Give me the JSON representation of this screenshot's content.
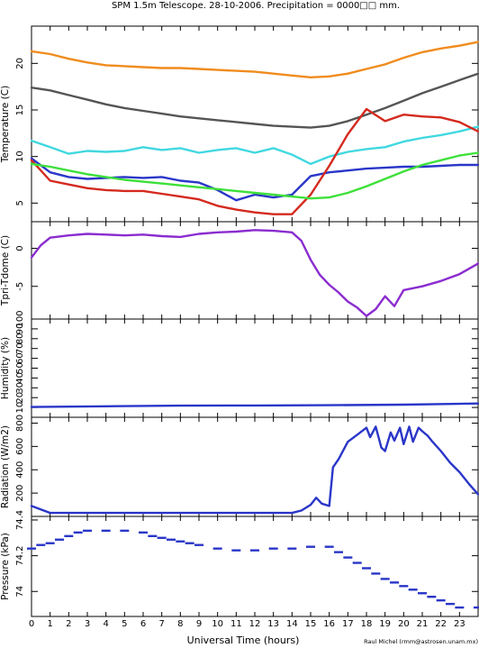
{
  "title": "SPM 1.5m Telescope. 28-10-2006. Precipitation = 0000□□ mm.",
  "credit": "Raul Michel (rmm@astrosen.unam.mx)",
  "chart_data": [
    {
      "type": "line",
      "ylabel": "Temperature (C)",
      "ylim": [
        3,
        24
      ],
      "yticks": [
        5,
        10,
        15,
        20
      ],
      "series": [
        {
          "color": "#f08c1e",
          "x": [
            0,
            1,
            2,
            3,
            4,
            5,
            6,
            7,
            8,
            9,
            10,
            11,
            12,
            13,
            14,
            15,
            16,
            17,
            18,
            19,
            20,
            21,
            22,
            23,
            24
          ],
          "y": [
            21.3,
            21.0,
            20.5,
            20.1,
            19.8,
            19.7,
            19.6,
            19.5,
            19.5,
            19.4,
            19.3,
            19.2,
            19.1,
            18.9,
            18.7,
            18.5,
            18.6,
            18.9,
            19.4,
            19.9,
            20.6,
            21.2,
            21.6,
            21.9,
            22.3
          ]
        },
        {
          "color": "#555555",
          "x": [
            0,
            1,
            2,
            3,
            4,
            5,
            6,
            7,
            8,
            9,
            10,
            11,
            12,
            13,
            14,
            15,
            16,
            17,
            18,
            19,
            20,
            21,
            22,
            23,
            24
          ],
          "y": [
            17.4,
            17.1,
            16.6,
            16.1,
            15.6,
            15.2,
            14.9,
            14.6,
            14.3,
            14.1,
            13.9,
            13.7,
            13.5,
            13.3,
            13.2,
            13.1,
            13.3,
            13.8,
            14.5,
            15.2,
            16.0,
            16.8,
            17.5,
            18.2,
            18.9
          ]
        },
        {
          "color": "#40d8e0",
          "x": [
            0,
            1,
            2,
            3,
            4,
            5,
            6,
            7,
            8,
            9,
            10,
            11,
            12,
            13,
            14,
            15,
            16,
            17,
            18,
            19,
            20,
            21,
            22,
            23,
            24
          ],
          "y": [
            11.7,
            11.0,
            10.3,
            10.6,
            10.5,
            10.6,
            11.0,
            10.7,
            10.9,
            10.4,
            10.7,
            10.9,
            10.4,
            10.9,
            10.2,
            9.2,
            10.0,
            10.5,
            10.8,
            11.0,
            11.6,
            12.0,
            12.3,
            12.7,
            13.2
          ]
        },
        {
          "color": "#2a36c8",
          "x": [
            0,
            1,
            2,
            3,
            4,
            5,
            6,
            7,
            8,
            9,
            10,
            11,
            12,
            13,
            14,
            15,
            16,
            17,
            18,
            19,
            20,
            21,
            22,
            23,
            24
          ],
          "y": [
            9.8,
            8.3,
            7.8,
            7.6,
            7.7,
            7.8,
            7.7,
            7.8,
            7.4,
            7.2,
            6.4,
            5.3,
            5.9,
            5.6,
            5.9,
            7.9,
            8.3,
            8.5,
            8.7,
            8.8,
            8.9,
            8.9,
            9.0,
            9.1,
            9.1
          ]
        },
        {
          "color": "#d42a1e",
          "x": [
            0,
            1,
            2,
            3,
            4,
            5,
            6,
            7,
            8,
            9,
            10,
            11,
            12,
            13,
            14,
            15,
            16,
            17,
            18,
            19,
            20,
            21,
            22,
            23,
            24
          ],
          "y": [
            9.6,
            7.4,
            7.0,
            6.6,
            6.4,
            6.3,
            6.3,
            6.0,
            5.7,
            5.4,
            4.7,
            4.3,
            4.0,
            3.8,
            3.8,
            5.9,
            9.0,
            12.4,
            15.1,
            13.8,
            14.5,
            14.3,
            14.2,
            13.7,
            12.7
          ]
        },
        {
          "color": "#3ee03a",
          "x": [
            0,
            1,
            2,
            3,
            4,
            5,
            6,
            7,
            8,
            9,
            10,
            11,
            12,
            13,
            14,
            15,
            16,
            17,
            18,
            19,
            20,
            21,
            22,
            23,
            24
          ],
          "y": [
            9.2,
            8.9,
            8.5,
            8.1,
            7.8,
            7.5,
            7.3,
            7.1,
            6.9,
            6.7,
            6.5,
            6.3,
            6.1,
            5.9,
            5.7,
            5.5,
            5.6,
            6.1,
            6.8,
            7.6,
            8.4,
            9.1,
            9.6,
            10.1,
            10.4
          ]
        }
      ]
    },
    {
      "type": "line",
      "ylabel": "Tpri-Tdome (C)",
      "ylim": [
        -9.3,
        3.5
      ],
      "yticks": [
        -5,
        0
      ],
      "series": [
        {
          "color": "#8a2ccf",
          "x": [
            0,
            0.5,
            1,
            2,
            3,
            4,
            5,
            6,
            7,
            8,
            9,
            10,
            11,
            12,
            13,
            14,
            14.5,
            15,
            15.5,
            16,
            16.5,
            17,
            17.5,
            18,
            18.5,
            19,
            19.5,
            20,
            21,
            22,
            23,
            24
          ],
          "y": [
            -1.2,
            0.4,
            1.4,
            1.7,
            1.9,
            1.8,
            1.7,
            1.8,
            1.6,
            1.5,
            1.9,
            2.1,
            2.2,
            2.4,
            2.3,
            2.1,
            1.0,
            -1.5,
            -3.5,
            -4.8,
            -5.8,
            -7.0,
            -7.8,
            -8.9,
            -8.0,
            -6.3,
            -7.6,
            -5.5,
            -5.0,
            -4.3,
            -3.4,
            -2.0
          ]
        }
      ]
    },
    {
      "type": "line",
      "ylabel": "Humidity (%)",
      "ylim": [
        0,
        100
      ],
      "yticks": [
        10,
        20,
        30,
        40,
        50,
        60,
        70,
        80,
        90,
        100
      ],
      "series": [
        {
          "color": "#2a36c8",
          "x": [
            0,
            4,
            8,
            12,
            16,
            20,
            24
          ],
          "y": [
            10.5,
            11.2,
            11.8,
            12.0,
            12.3,
            12.8,
            14.0
          ]
        }
      ]
    },
    {
      "type": "line",
      "ylabel": "Radiation (W/m2)",
      "ylim": [
        0,
        850
      ],
      "yticks": [
        200,
        400,
        600,
        800
      ],
      "series": [
        {
          "color": "#2a36c8",
          "x": [
            0,
            0.5,
            1,
            1.5,
            2,
            4,
            6,
            8,
            10,
            12,
            14,
            14.5,
            15,
            15.3,
            15.6,
            16,
            16.2,
            16.5,
            17,
            17.5,
            18,
            18.2,
            18.5,
            18.8,
            19,
            19.3,
            19.5,
            19.8,
            20,
            20.3,
            20.5,
            20.8,
            21,
            21.3,
            21.5,
            22,
            22.5,
            23,
            23.5,
            24
          ],
          "y": [
            90,
            60,
            30,
            30,
            30,
            30,
            30,
            30,
            30,
            30,
            30,
            50,
            100,
            160,
            110,
            90,
            420,
            490,
            640,
            700,
            760,
            680,
            770,
            590,
            560,
            720,
            650,
            760,
            620,
            770,
            640,
            760,
            730,
            690,
            650,
            560,
            460,
            380,
            280,
            190
          ]
        }
      ]
    },
    {
      "type": "scatter",
      "xlabel": "Universal Time (hours)",
      "ylabel": "Pressure (kPa)",
      "ylim": [
        73.86,
        74.42
      ],
      "yticks": [
        74,
        74.2,
        74.4
      ],
      "xlim": [
        0,
        24
      ],
      "xticks": [
        0,
        1,
        2,
        3,
        4,
        5,
        6,
        7,
        8,
        9,
        10,
        11,
        12,
        13,
        14,
        15,
        16,
        17,
        18,
        19,
        20,
        21,
        22,
        23
      ],
      "series": [
        {
          "color": "#2a36c8",
          "x": [
            0,
            0.5,
            1,
            1.5,
            2,
            2.5,
            3,
            4,
            5,
            6,
            6.5,
            7,
            7.5,
            8,
            8.5,
            9,
            10,
            11,
            12,
            13,
            14,
            15,
            16,
            16.5,
            17,
            17.5,
            18,
            18.5,
            19,
            19.5,
            20,
            20.5,
            21,
            21.5,
            22,
            22.5,
            23,
            24
          ],
          "y": [
            74.24,
            74.26,
            74.27,
            74.29,
            74.31,
            74.33,
            74.34,
            74.34,
            74.34,
            74.33,
            74.31,
            74.3,
            74.29,
            74.28,
            74.27,
            74.26,
            74.24,
            74.23,
            74.23,
            74.24,
            74.24,
            74.25,
            74.25,
            74.22,
            74.19,
            74.16,
            74.13,
            74.1,
            74.07,
            74.05,
            74.03,
            74.01,
            73.99,
            73.97,
            73.95,
            73.93,
            73.91,
            73.91
          ]
        }
      ]
    }
  ]
}
